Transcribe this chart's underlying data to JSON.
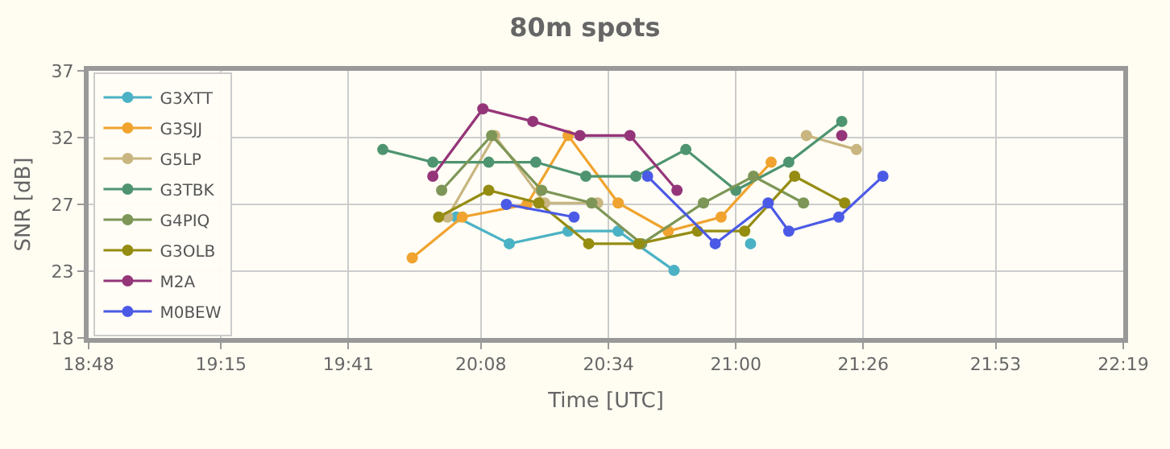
{
  "chart_data": {
    "type": "line",
    "title": "80m spots",
    "xlabel": "Time [UTC]",
    "ylabel": "SNR [dB]",
    "xlim": [
      18.8,
      22.317
    ],
    "xticks": [
      {
        "value": 18.8,
        "label": "18:48"
      },
      {
        "value": 19.25,
        "label": "19:15"
      },
      {
        "value": 19.683,
        "label": "19:41"
      },
      {
        "value": 20.133,
        "label": "20:08"
      },
      {
        "value": 20.567,
        "label": "20:34"
      },
      {
        "value": 21.0,
        "label": "21:00"
      },
      {
        "value": 21.433,
        "label": "21:26"
      },
      {
        "value": 21.883,
        "label": "21:53"
      },
      {
        "value": 22.317,
        "label": "22:19"
      }
    ],
    "ylim": [
      18,
      37
    ],
    "yticks": [
      18,
      {
        "value": 22.75,
        "label": "23"
      },
      {
        "value": 27.5,
        "label": "27"
      },
      {
        "value": 32.25,
        "label": "32"
      },
      37
    ],
    "grid": true,
    "legend": "left",
    "marker": "circle",
    "line_style": "solid",
    "series": [
      {
        "name": "G3XTT",
        "color": "#4bb2c5",
        "x": [
          20.05,
          20.23,
          20.43,
          20.6,
          20.79,
          20.9,
          21.05
        ],
        "values": [
          26.6,
          24.7,
          25.6,
          25.6,
          22.8,
          null,
          24.7
        ]
      },
      {
        "name": "G3SJJ",
        "color": "#f0a32e",
        "x": [
          19.9,
          20.07,
          20.29,
          20.43,
          20.6,
          20.77,
          20.95,
          21.12
        ],
        "values": [
          23.7,
          26.6,
          27.5,
          32.4,
          27.6,
          25.6,
          26.6,
          30.5
        ]
      },
      {
        "name": "G5LP",
        "color": "#c8b57f",
        "x": [
          20.02,
          20.18,
          20.35,
          20.53,
          20.9,
          21.24,
          21.41
        ],
        "values": [
          26.6,
          32.4,
          27.6,
          27.6,
          null,
          32.4,
          31.4
        ]
      },
      {
        "name": "G3TBK",
        "color": "#4e9470",
        "x": [
          19.8,
          19.97,
          20.16,
          20.32,
          20.49,
          20.66,
          20.83,
          21.0,
          21.18,
          21.36
        ],
        "values": [
          31.4,
          30.5,
          30.5,
          30.5,
          29.5,
          29.5,
          31.4,
          28.5,
          30.5,
          33.4
        ]
      },
      {
        "name": "G4PIQ",
        "color": "#7d9657",
        "x": [
          20.0,
          20.17,
          20.34,
          20.51,
          20.68,
          20.89,
          21.06,
          21.23
        ],
        "values": [
          28.5,
          32.4,
          28.5,
          27.6,
          24.7,
          27.6,
          29.5,
          27.6
        ]
      },
      {
        "name": "G3OLB",
        "color": "#958c12",
        "x": [
          19.99,
          20.16,
          20.33,
          20.5,
          20.67,
          20.87,
          21.03,
          21.2,
          21.37
        ],
        "values": [
          26.6,
          28.5,
          27.6,
          24.7,
          24.7,
          25.6,
          25.6,
          29.5,
          27.6
        ]
      },
      {
        "name": "M2A",
        "color": "#953579",
        "x": [
          19.97,
          20.14,
          20.31,
          20.47,
          20.64,
          20.8,
          21.1,
          21.36
        ],
        "values": [
          29.5,
          34.3,
          33.4,
          32.4,
          32.4,
          28.5,
          null,
          32.4
        ]
      },
      {
        "name": "M0BEW",
        "color": "#4b5ae6",
        "x": [
          20.22,
          20.45,
          20.6,
          20.7,
          20.93,
          21.11,
          21.18,
          21.35,
          21.5
        ],
        "values": [
          27.5,
          26.6,
          null,
          29.5,
          24.7,
          27.6,
          25.6,
          26.6,
          29.5
        ]
      }
    ]
  }
}
